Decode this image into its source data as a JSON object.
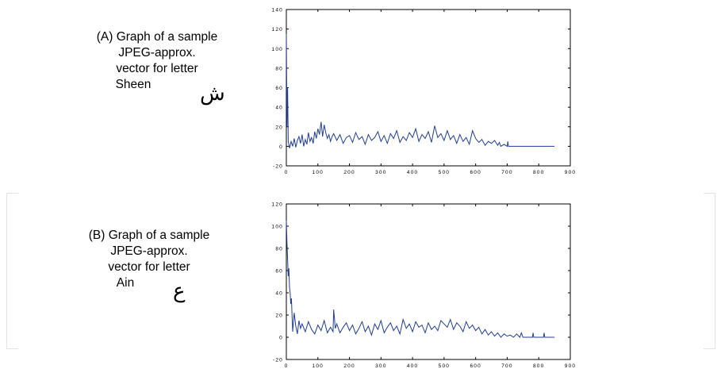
{
  "captions": {
    "a": [
      "(A) Graph of a sample",
      "JPEG-approx.",
      "vector for letter",
      "Sheen"
    ],
    "b": [
      "(B) Graph of a sample",
      "JPEG-approx.",
      "vector for letter",
      "Ain"
    ]
  },
  "letters": {
    "a": "ش",
    "b": "ع"
  },
  "colors": {
    "line": "#1f3d99",
    "axis": "#000000"
  },
  "chart_data": [
    {
      "type": "line",
      "title": "",
      "xlabel": "",
      "ylabel": "",
      "xlim": [
        0,
        900
      ],
      "ylim": [
        -20,
        140
      ],
      "xticks": [
        0,
        100,
        200,
        300,
        400,
        500,
        600,
        700,
        800,
        900
      ],
      "yticks": [
        -20,
        0,
        20,
        40,
        60,
        80,
        100,
        120,
        140
      ],
      "xtick_labels": [
        "0",
        "100",
        "200",
        "300",
        "400",
        "500",
        "600",
        "700",
        "800",
        "900"
      ],
      "ytick_labels": [
        "-20",
        "0",
        "20",
        "40",
        "60",
        "80",
        "100",
        "120",
        "140"
      ],
      "grid": false,
      "series": [
        {
          "x": [
            0,
            2,
            4,
            6,
            10,
            15,
            20,
            25,
            30,
            35,
            40,
            45,
            50,
            55,
            60,
            65,
            70,
            75,
            80,
            85,
            90,
            95,
            100,
            105,
            110,
            115,
            120,
            125,
            130,
            135,
            140,
            145,
            150,
            160,
            170,
            180,
            190,
            200,
            210,
            220,
            230,
            240,
            250,
            260,
            270,
            280,
            290,
            300,
            310,
            320,
            330,
            340,
            350,
            360,
            370,
            380,
            390,
            400,
            410,
            420,
            430,
            440,
            450,
            460,
            470,
            480,
            490,
            500,
            510,
            520,
            530,
            540,
            550,
            560,
            570,
            580,
            590,
            600,
            610,
            620,
            630,
            640,
            650,
            660,
            670,
            675,
            680,
            690,
            700,
            702,
            704,
            710,
            850
          ],
          "y": [
            115,
            20,
            60,
            5,
            -2,
            5,
            0,
            8,
            -1,
            6,
            10,
            3,
            12,
            0,
            7,
            2,
            14,
            5,
            9,
            3,
            15,
            8,
            18,
            12,
            25,
            10,
            22,
            14,
            8,
            12,
            5,
            10,
            13,
            6,
            12,
            3,
            9,
            11,
            4,
            14,
            7,
            10,
            2,
            12,
            6,
            9,
            15,
            5,
            11,
            3,
            13,
            8,
            16,
            4,
            10,
            6,
            14,
            9,
            18,
            5,
            12,
            8,
            15,
            4,
            21,
            9,
            13,
            6,
            16,
            7,
            11,
            3,
            12,
            5,
            9,
            2,
            16,
            8,
            4,
            7,
            1,
            5,
            3,
            6,
            1,
            4,
            0,
            2,
            0,
            5,
            0,
            0,
            0
          ]
        }
      ]
    },
    {
      "type": "line",
      "title": "",
      "xlabel": "",
      "ylabel": "",
      "xlim": [
        0,
        900
      ],
      "ylim": [
        -20,
        120
      ],
      "xticks": [
        0,
        100,
        200,
        300,
        400,
        500,
        600,
        700,
        800,
        900
      ],
      "yticks": [
        -20,
        0,
        20,
        40,
        60,
        80,
        100,
        120
      ],
      "xtick_labels": [
        "0",
        "100",
        "200",
        "300",
        "400",
        "500",
        "600",
        "700",
        "800",
        "900"
      ],
      "ytick_labels": [
        "-20",
        "0",
        "20",
        "40",
        "60",
        "80",
        "100",
        "120"
      ],
      "grid": false,
      "series": [
        {
          "x": [
            0,
            2,
            4,
            6,
            8,
            10,
            12,
            14,
            16,
            18,
            20,
            25,
            30,
            35,
            40,
            45,
            50,
            60,
            70,
            80,
            90,
            100,
            110,
            120,
            130,
            140,
            148,
            150,
            155,
            160,
            170,
            180,
            190,
            200,
            210,
            220,
            230,
            240,
            250,
            260,
            270,
            280,
            290,
            300,
            310,
            320,
            330,
            340,
            350,
            360,
            370,
            380,
            390,
            400,
            410,
            420,
            430,
            440,
            450,
            460,
            470,
            480,
            490,
            500,
            510,
            520,
            530,
            540,
            550,
            560,
            570,
            580,
            590,
            600,
            610,
            620,
            630,
            640,
            650,
            660,
            670,
            680,
            690,
            700,
            710,
            720,
            730,
            740,
            745,
            750,
            780,
            782,
            784,
            815,
            817,
            819,
            850
          ],
          "y": [
            105,
            85,
            70,
            55,
            62,
            45,
            40,
            30,
            35,
            20,
            5,
            22,
            10,
            3,
            15,
            8,
            12,
            5,
            14,
            7,
            3,
            11,
            6,
            15,
            4,
            9,
            5,
            25,
            8,
            12,
            4,
            9,
            13,
            6,
            11,
            3,
            8,
            14,
            5,
            10,
            2,
            12,
            7,
            15,
            4,
            9,
            13,
            6,
            10,
            3,
            16,
            8,
            12,
            5,
            14,
            9,
            11,
            4,
            13,
            7,
            10,
            6,
            15,
            12,
            9,
            16,
            7,
            13,
            10,
            5,
            14,
            8,
            11,
            6,
            9,
            3,
            7,
            2,
            5,
            1,
            4,
            0,
            3,
            1,
            2,
            0,
            3,
            0,
            4,
            0,
            0,
            4,
            0,
            0,
            4,
            0,
            0
          ]
        }
      ]
    }
  ]
}
